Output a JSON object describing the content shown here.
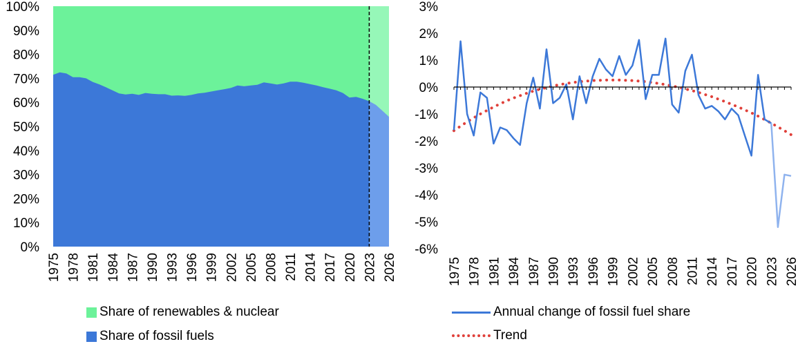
{
  "chart_data": [
    {
      "type": "area",
      "stacked": true,
      "x": [
        1975,
        1976,
        1977,
        1978,
        1979,
        1980,
        1981,
        1982,
        1983,
        1984,
        1985,
        1986,
        1987,
        1988,
        1989,
        1990,
        1991,
        1992,
        1993,
        1994,
        1995,
        1996,
        1997,
        1998,
        1999,
        2000,
        2001,
        2002,
        2003,
        2004,
        2005,
        2006,
        2007,
        2008,
        2009,
        2010,
        2011,
        2012,
        2013,
        2014,
        2015,
        2016,
        2017,
        2018,
        2019,
        2020,
        2021,
        2022,
        2023,
        2024,
        2025,
        2026
      ],
      "xticks": [
        "1975",
        "1978",
        "1981",
        "1984",
        "1987",
        "1990",
        "1993",
        "1996",
        "1999",
        "2002",
        "2005",
        "2008",
        "2011",
        "2014",
        "2017",
        "2020",
        "2023",
        "2026"
      ],
      "yticks": [
        "0%",
        "10%",
        "20%",
        "30%",
        "40%",
        "50%",
        "60%",
        "70%",
        "80%",
        "90%",
        "100%"
      ],
      "ylim": [
        0,
        100
      ],
      "series": [
        {
          "name": "Share of fossil fuels",
          "values": [
            71.5,
            72.5,
            72.0,
            70.5,
            70.5,
            70.0,
            68.5,
            67.5,
            66.3,
            65.0,
            63.7,
            63.3,
            63.6,
            63.1,
            63.9,
            63.6,
            63.4,
            63.4,
            62.8,
            62.9,
            62.7,
            63.1,
            63.7,
            64.0,
            64.5,
            65.0,
            65.5,
            66.0,
            67.0,
            66.7,
            67.0,
            67.3,
            68.3,
            67.9,
            67.4,
            67.9,
            68.6,
            68.6,
            68.2,
            67.6,
            67.0,
            66.3,
            65.7,
            65.0,
            63.9,
            62.0,
            62.3,
            61.5,
            60.5,
            59.0,
            56.5,
            54.0
          ]
        },
        {
          "name": "Share of renewables & nuclear",
          "values": [
            28.5,
            27.5,
            28.0,
            29.5,
            29.5,
            30.0,
            31.5,
            32.5,
            33.7,
            35.0,
            36.3,
            36.7,
            36.4,
            36.9,
            36.1,
            36.4,
            36.6,
            36.6,
            37.2,
            37.1,
            37.3,
            36.9,
            36.3,
            36.0,
            35.5,
            35.0,
            34.5,
            34.0,
            33.0,
            33.3,
            33.0,
            32.7,
            31.7,
            32.1,
            32.6,
            32.1,
            31.4,
            31.4,
            31.8,
            32.4,
            33.0,
            33.7,
            34.3,
            35.0,
            36.1,
            38.0,
            37.7,
            38.5,
            39.5,
            41.0,
            43.5,
            46.0
          ]
        }
      ],
      "forecast_from": 2023,
      "colors": {
        "fossil": "#3C78D8",
        "fossil_forecast": "#6D9EEB",
        "renewables": "#6CF29A",
        "renewables_forecast": "#96F7B8"
      },
      "legend_position": "bottom"
    },
    {
      "type": "line",
      "x": [
        1975,
        1976,
        1977,
        1978,
        1979,
        1980,
        1981,
        1982,
        1983,
        1984,
        1985,
        1986,
        1987,
        1988,
        1989,
        1990,
        1991,
        1992,
        1993,
        1994,
        1995,
        1996,
        1997,
        1998,
        1999,
        2000,
        2001,
        2002,
        2003,
        2004,
        2005,
        2006,
        2007,
        2008,
        2009,
        2010,
        2011,
        2012,
        2013,
        2014,
        2015,
        2016,
        2017,
        2018,
        2019,
        2020,
        2021,
        2022,
        2023,
        2024,
        2025,
        2026
      ],
      "xticks": [
        "1975",
        "1978",
        "1981",
        "1984",
        "1987",
        "1990",
        "1993",
        "1996",
        "1999",
        "2002",
        "2005",
        "2008",
        "2011",
        "2014",
        "2017",
        "2020",
        "2023",
        "2026"
      ],
      "yticks": [
        "3%",
        "2%",
        "1%",
        "0%",
        "-1%",
        "-2%",
        "-3%",
        "-4%",
        "-5%",
        "-6%"
      ],
      "ylim": [
        -6,
        3
      ],
      "series": [
        {
          "name": "Annual change of fossil fuel share",
          "values": [
            -1.6,
            1.7,
            -1.0,
            -1.8,
            -0.2,
            -0.4,
            -2.1,
            -1.5,
            -1.6,
            -1.9,
            -2.15,
            -0.6,
            0.35,
            -0.8,
            1.4,
            -0.6,
            -0.4,
            0.1,
            -1.2,
            0.4,
            -0.6,
            0.4,
            1.05,
            0.65,
            0.4,
            1.15,
            0.45,
            0.8,
            1.75,
            -0.45,
            0.45,
            0.45,
            1.8,
            -0.65,
            -0.95,
            0.6,
            1.2,
            -0.3,
            -0.8,
            -0.7,
            -0.9,
            -1.2,
            -0.8,
            -1.05,
            -1.8,
            -2.55,
            0.45,
            -1.2,
            -1.35,
            -5.2,
            -3.25,
            -3.3
          ],
          "forecast_from": 2023
        },
        {
          "name": "Trend",
          "values": [
            -1.62,
            -1.45,
            -1.29,
            -1.14,
            -1.0,
            -0.87,
            -0.74,
            -0.62,
            -0.51,
            -0.41,
            -0.32,
            -0.23,
            -0.15,
            -0.08,
            -0.02,
            0.04,
            0.09,
            0.13,
            0.17,
            0.2,
            0.22,
            0.24,
            0.25,
            0.26,
            0.26,
            0.26,
            0.25,
            0.24,
            0.22,
            0.2,
            0.17,
            0.13,
            0.09,
            0.04,
            -0.01,
            -0.07,
            -0.13,
            -0.2,
            -0.28,
            -0.36,
            -0.45,
            -0.54,
            -0.64,
            -0.74,
            -0.85,
            -0.96,
            -1.08,
            -1.21,
            -1.34,
            -1.48,
            -1.62,
            -1.77
          ]
        }
      ],
      "colors": {
        "line": "#3C78D8",
        "line_forecast": "#8FB3EE",
        "trend": "#E0403A"
      },
      "legend_position": "bottom"
    }
  ]
}
